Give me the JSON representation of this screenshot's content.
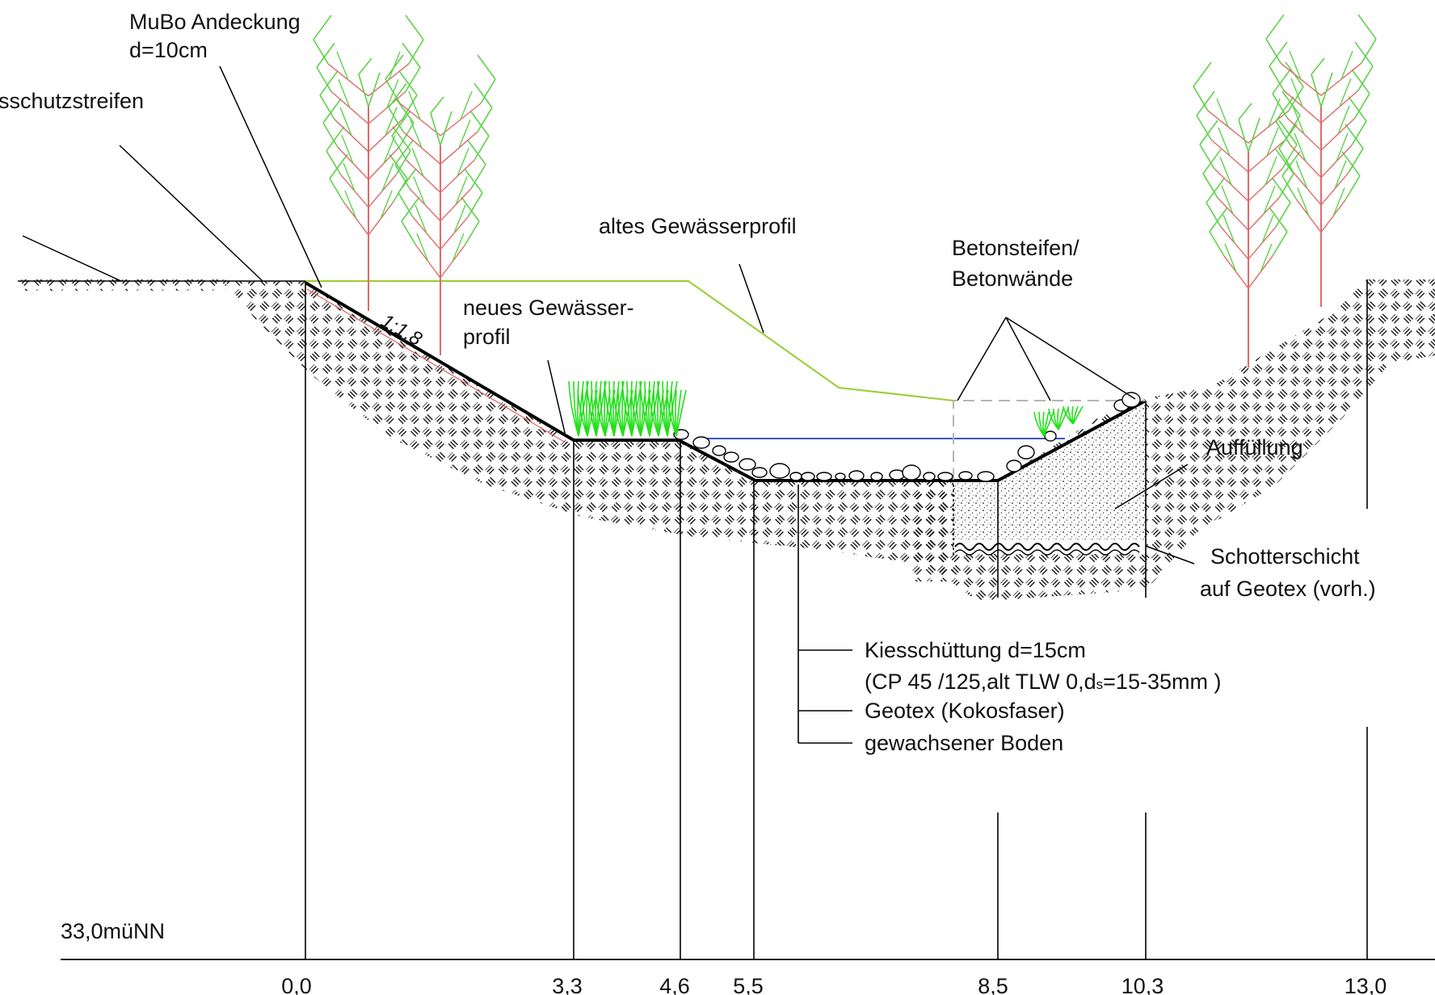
{
  "labels": {
    "mubo": "MuBo Andeckung",
    "mubo_d": "d=10cm",
    "schutzstreifen": "sschutzstreifen",
    "slope": "1:1,8",
    "neues1": "neues Gewässer-",
    "neues2": "profil",
    "altes": "altes Gewässerprofil",
    "beton1": "Betonsteifen/",
    "beton2": "Betonwände",
    "auffuellung": "Auffüllung",
    "schotter1": "Schotterschicht",
    "schotter2": "auf Geotex (vorh.)",
    "kies1": "Kiesschüttung d=15cm",
    "kies2a": "(CP 45 /125,alt TLW 0,d",
    "kies2sub": "s",
    "kies2b": "=15-35mm )",
    "geotex": "Geotex (Kokosfaser)",
    "boden": "gewachsener Boden",
    "elevation": "33,0müNN"
  },
  "axis_ticks": [
    "0,0",
    "3,3",
    "4,6",
    "5,5",
    "8,5",
    "10,3",
    "13,0"
  ],
  "colors": {
    "tree_branch": "#e06a6a",
    "tree_leaf": "#5fd14a",
    "grass": "#22e01a",
    "old_profile": "#9acd32",
    "water": "#1f3fbf",
    "concrete_dash": "#b5b5b5",
    "line": "#000000"
  }
}
